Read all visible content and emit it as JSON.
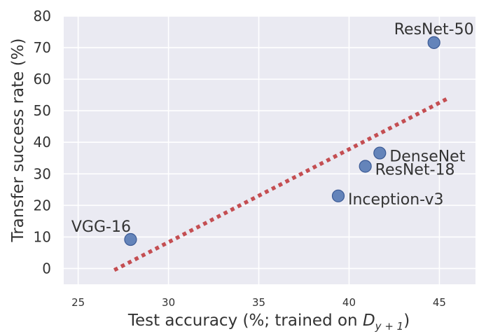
{
  "chart_data": {
    "type": "scatter",
    "title": "",
    "xlabel_prefix": "Test accuracy (%; trained on ",
    "xlabel_math": "D",
    "xlabel_sub": "y + 1",
    "xlabel_suffix": ")",
    "ylabel": "Transfer success rate (%)",
    "xlim": [
      24.2,
      47
    ],
    "ylim": [
      -5,
      80
    ],
    "xticks": [
      "25",
      "30",
      "35",
      "40",
      "45"
    ],
    "yticks": [
      "0",
      "10",
      "20",
      "30",
      "40",
      "50",
      "60",
      "70",
      "80"
    ],
    "grid": true,
    "points": [
      {
        "label": "VGG-16",
        "x": 27.9,
        "y": 9.2,
        "label_pos": "above-left"
      },
      {
        "label": "Inception-v3",
        "x": 39.4,
        "y": 23.0,
        "label_pos": "right"
      },
      {
        "label": "ResNet-18",
        "x": 40.9,
        "y": 32.4,
        "label_pos": "right"
      },
      {
        "label": "DenseNet",
        "x": 41.7,
        "y": 36.6,
        "label_pos": "right"
      },
      {
        "label": "ResNet-50",
        "x": 44.7,
        "y": 71.6,
        "label_pos": "above"
      }
    ],
    "trend_line": {
      "x": [
        27.0,
        45.5
      ],
      "y": [
        -0.5,
        54.0
      ],
      "style": "dotted"
    },
    "colors": {
      "background": "#eaeaf2",
      "grid": "#ffffff",
      "point": "#4c72b0",
      "trend": "#c44e52",
      "text": "#333333"
    }
  }
}
